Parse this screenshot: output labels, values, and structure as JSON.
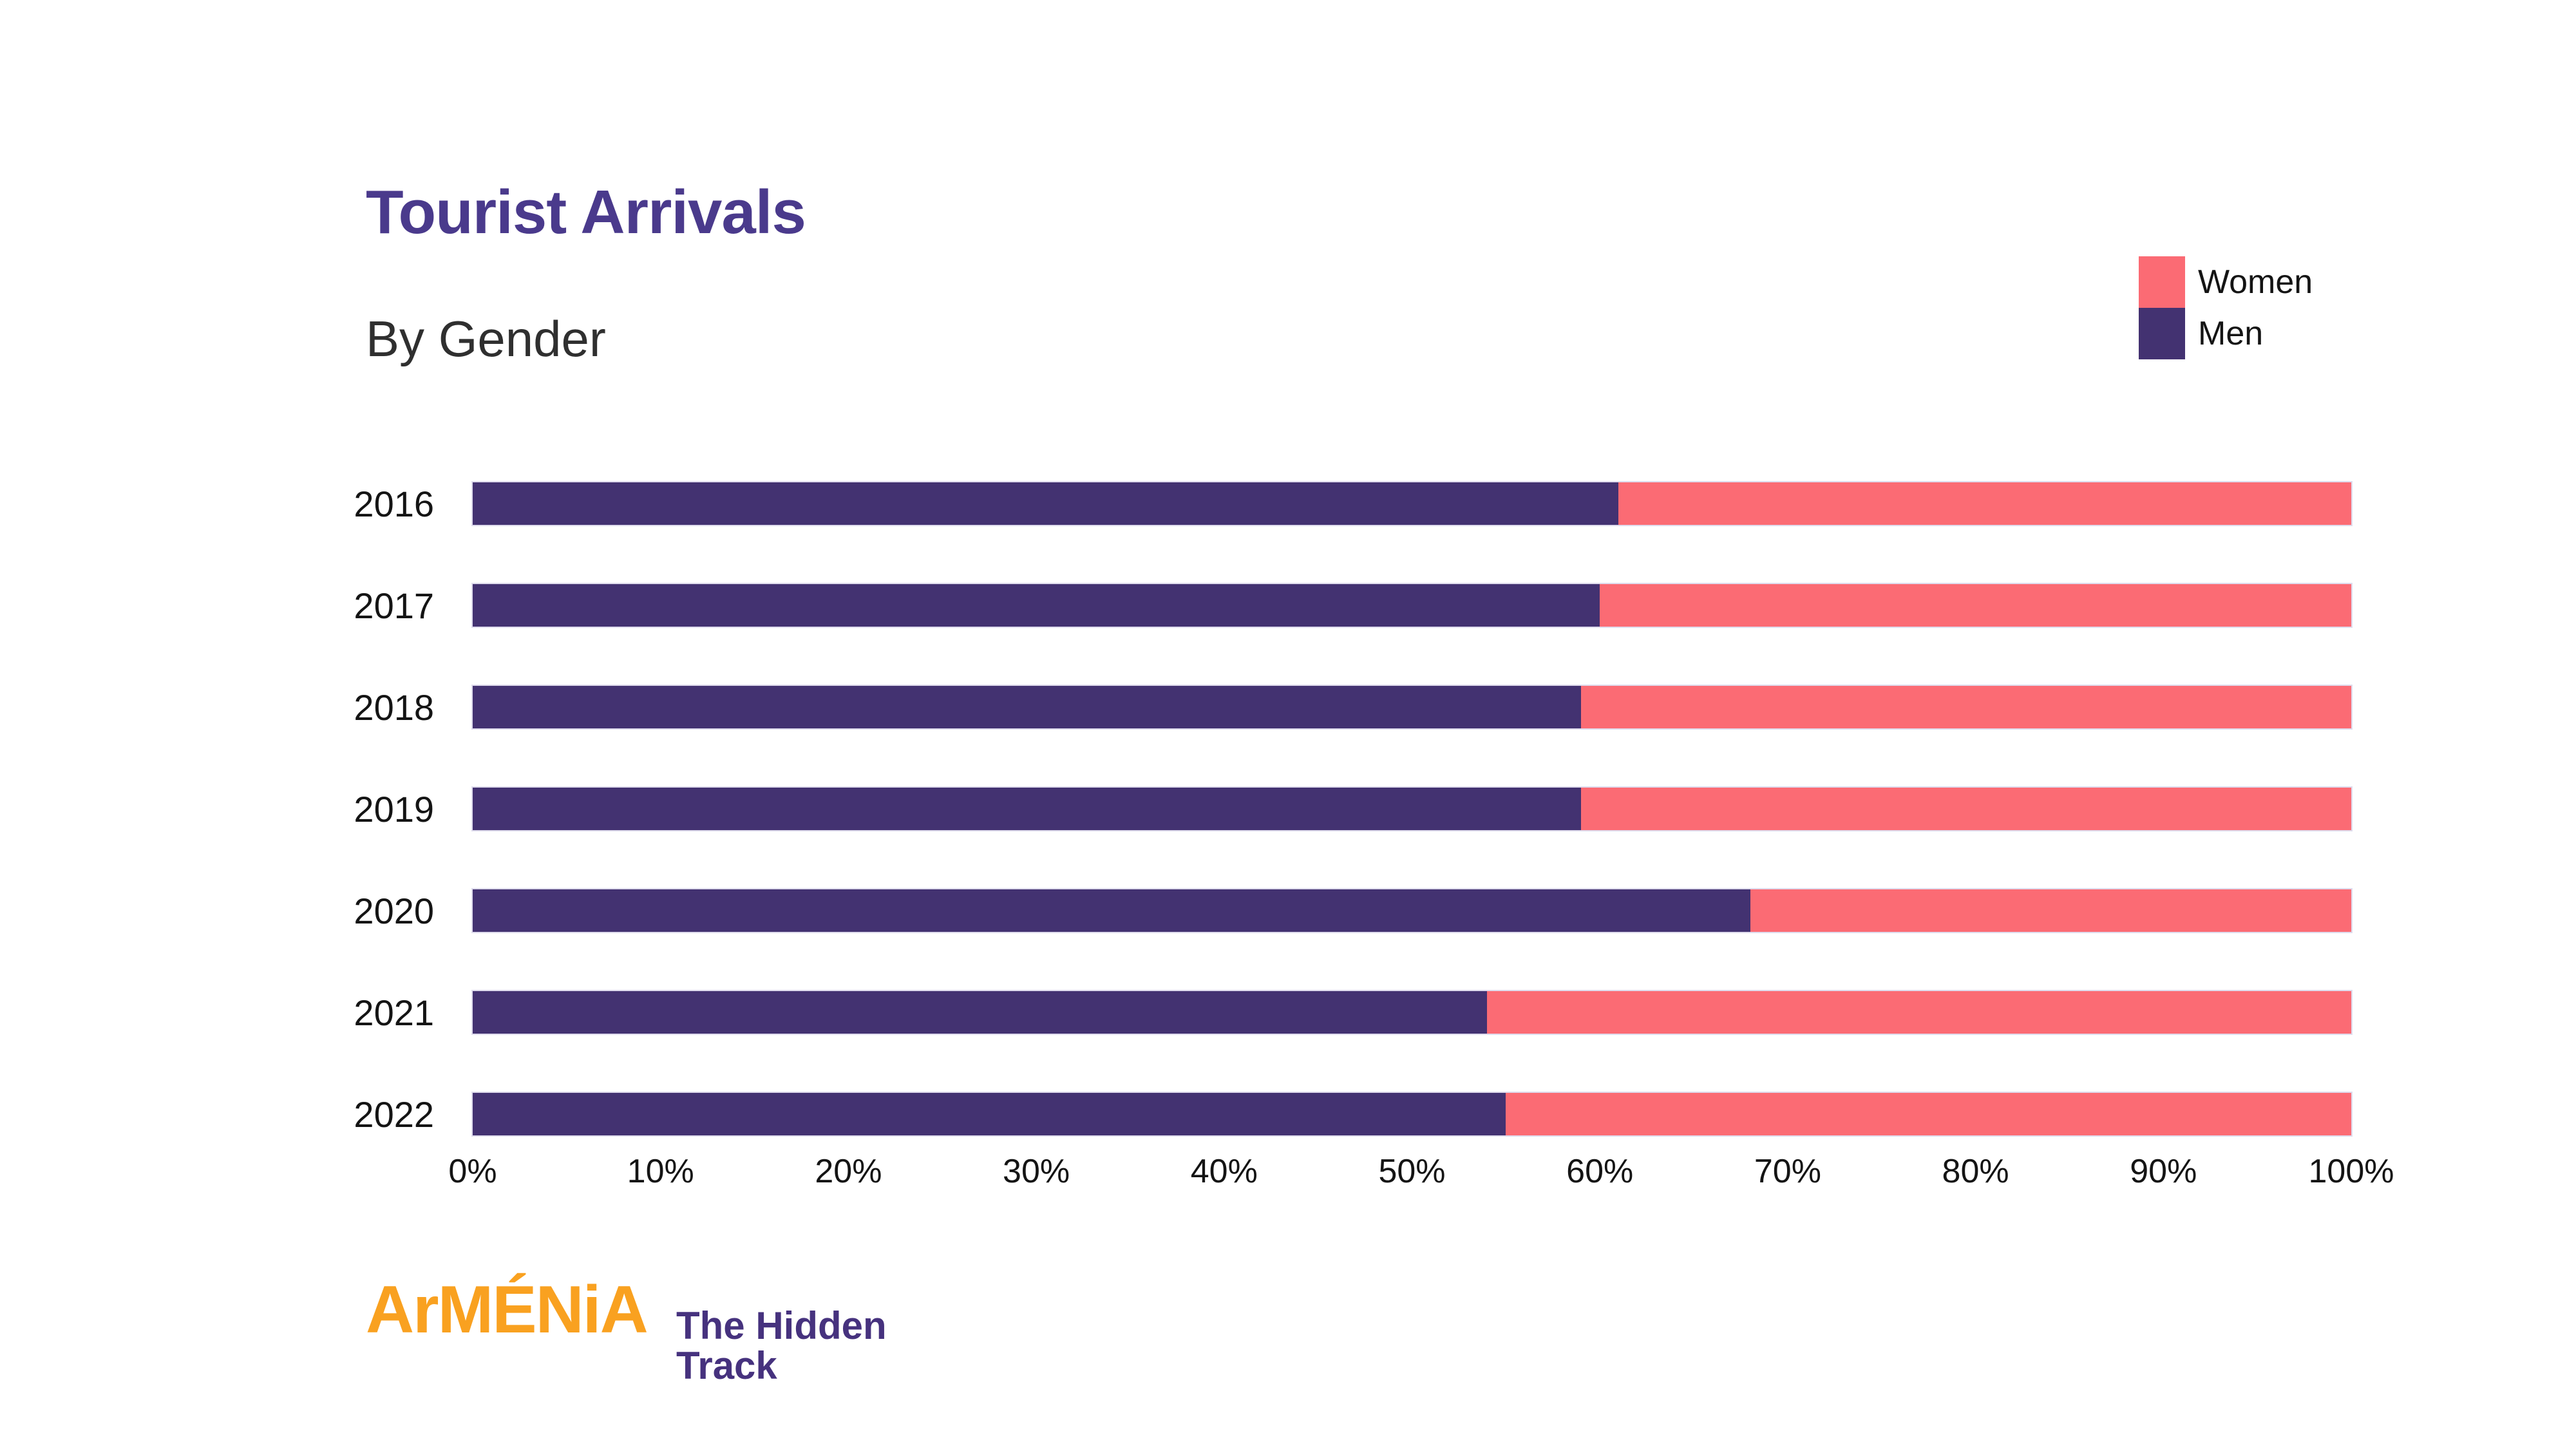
{
  "title": "Tourist Arrivals",
  "subtitle": "By Gender",
  "legend": {
    "items": [
      {
        "label": "Women",
        "color": "#FB6B74"
      },
      {
        "label": "Men",
        "color": "#433271"
      }
    ]
  },
  "colors": {
    "men": "#433271",
    "women": "#FB6B74",
    "title": "#4A3A8C",
    "logo_orange": "#F9A120",
    "logo_purple": "#46327E"
  },
  "chart_data": {
    "type": "bar",
    "stacked": true,
    "orientation": "horizontal",
    "unit": "%",
    "title": "Tourist Arrivals",
    "subtitle": "By Gender",
    "categories": [
      "2016",
      "2017",
      "2018",
      "2019",
      "2020",
      "2021",
      "2022"
    ],
    "series": [
      {
        "name": "Men",
        "color": "#433271",
        "values": [
          61,
          60,
          59,
          59,
          68,
          54,
          55
        ]
      },
      {
        "name": "Women",
        "color": "#FB6B74",
        "values": [
          39,
          40,
          41,
          41,
          32,
          46,
          45
        ]
      }
    ],
    "xlabel": "",
    "ylabel": "",
    "xlim": [
      0,
      100
    ],
    "x_ticks": [
      "0%",
      "10%",
      "20%",
      "30%",
      "40%",
      "50%",
      "60%",
      "70%",
      "80%",
      "90%",
      "100%"
    ],
    "legend_position": "top-right",
    "grid": false
  },
  "footer": {
    "logo_main": "ArMÉNiA",
    "tagline_line1": "The Hidden",
    "tagline_line2": "Track"
  }
}
